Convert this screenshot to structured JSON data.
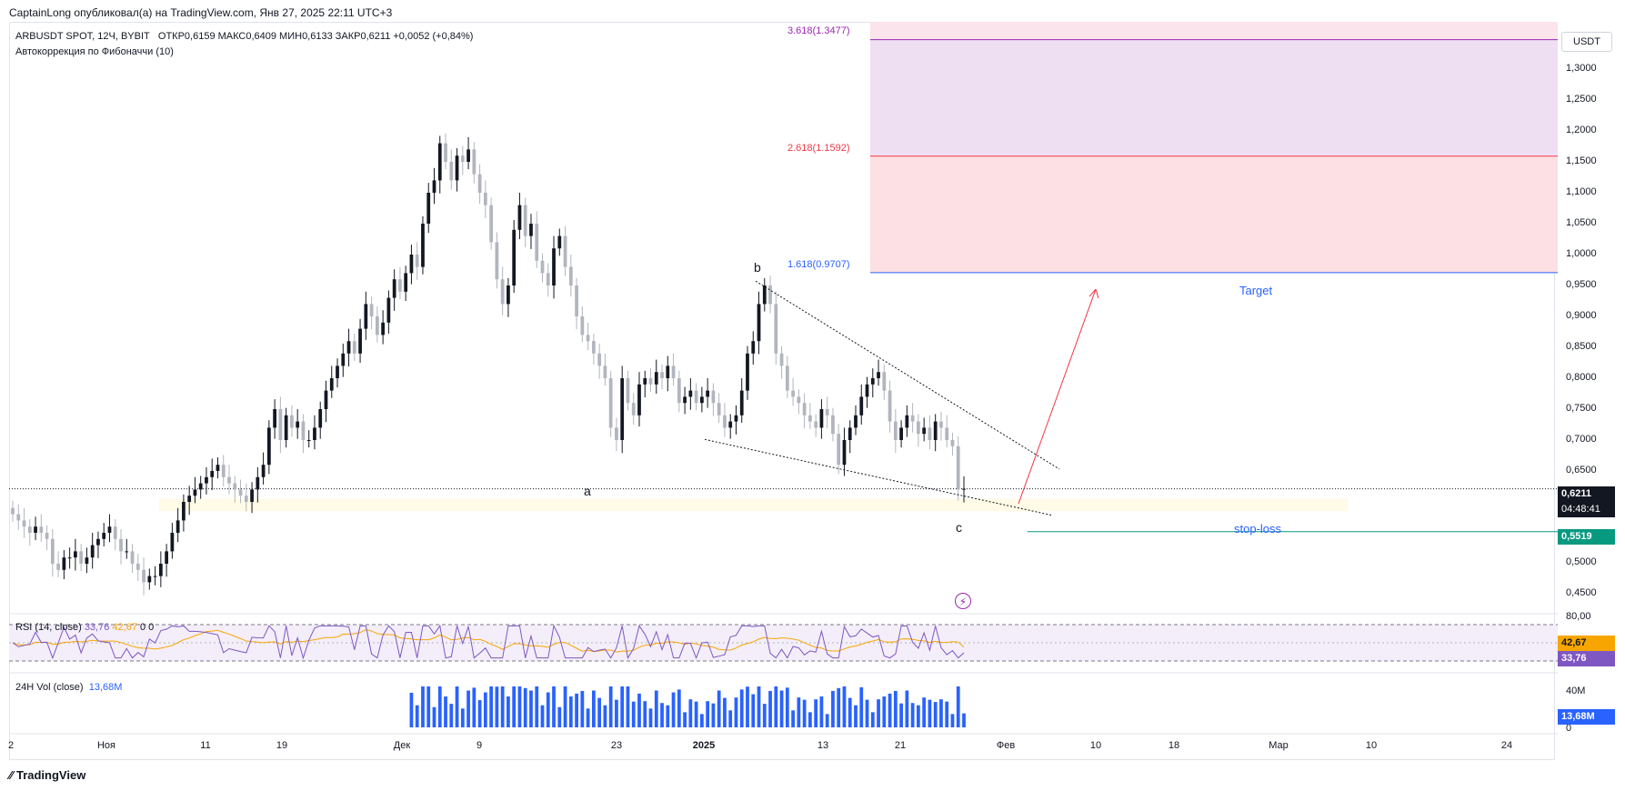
{
  "publisher_line": "CaptainLong опубликовал(а) на TradingView.com, Янв 27, 2025 22:11 UTC+3",
  "legend": {
    "symbol": "ARBUSDT SPOT, 12Ч, BYBIT",
    "ohlc": "ОТКР0,6159  МАКС0,6409  МИН0,6133  ЗАКР0,6211  +0,0052 (+0,84%)",
    "indicator": "Автокоррекция по Фибоначчи (10)"
  },
  "currency_button": "USDT",
  "price_axis": [
    "1,3000",
    "1,2500",
    "1,2000",
    "1,1500",
    "1,1000",
    "1,0500",
    "1,0000",
    "0,9500",
    "0,9000",
    "0,8500",
    "0,8000",
    "0,7500",
    "0,7000",
    "0,6500",
    "0,5000",
    "0,4500"
  ],
  "current_price": {
    "value": "0,6211",
    "countdown": "04:48:41"
  },
  "stop_loss_price": "0,5519",
  "fib_levels": [
    {
      "label": "3.618(1.3477)",
      "color": "#9c27b0"
    },
    {
      "label": "2.618(1.1592)",
      "color": "#f23645"
    },
    {
      "label": "1.618(0.9707)",
      "color": "#2962ff"
    }
  ],
  "annotations": {
    "target": "Target",
    "stop_loss": "stop-loss",
    "wave_a": "a",
    "wave_b": "b",
    "wave_c": "c"
  },
  "rsi": {
    "title": "RSI (14, close)",
    "value": "33,76",
    "ma_value": "42,67",
    "extra": "0  0",
    "axis_top": "80,00",
    "tag_ma": "42,67",
    "tag_rsi": "33,76",
    "rsi_color": "#7e57c2",
    "ma_color": "#f7a600"
  },
  "volume": {
    "title": "24H Vol (close)",
    "value": "13,68M",
    "axis_top": "40M",
    "axis_zero": "0",
    "tag": "13,68M",
    "bar_color": "#2962ff"
  },
  "time_axis": [
    "2",
    "Ноя",
    "11",
    "19",
    "Дек",
    "9",
    "23",
    "2025",
    "13",
    "21",
    "Фев",
    "10",
    "18",
    "Мар",
    "10",
    "24"
  ],
  "branding": "TradingView",
  "chart_data": {
    "type": "candlestick",
    "symbol": "ARBUSDT",
    "timeframe": "12h",
    "ylim": [
      0.43,
      1.39
    ],
    "y_ticks": [
      0.45,
      0.5,
      0.65,
      0.7,
      0.75,
      0.8,
      0.85,
      0.9,
      0.95,
      1.0,
      1.05,
      1.1,
      1.15,
      1.2,
      1.25,
      1.3
    ],
    "closes": [
      0.58,
      0.57,
      0.56,
      0.55,
      0.56,
      0.55,
      0.54,
      0.5,
      0.49,
      0.51,
      0.51,
      0.52,
      0.5,
      0.51,
      0.53,
      0.54,
      0.55,
      0.56,
      0.54,
      0.52,
      0.52,
      0.5,
      0.49,
      0.47,
      0.48,
      0.48,
      0.5,
      0.52,
      0.55,
      0.57,
      0.6,
      0.61,
      0.62,
      0.63,
      0.64,
      0.65,
      0.66,
      0.64,
      0.63,
      0.62,
      0.61,
      0.6,
      0.62,
      0.64,
      0.66,
      0.72,
      0.75,
      0.7,
      0.74,
      0.72,
      0.73,
      0.7,
      0.7,
      0.72,
      0.75,
      0.78,
      0.8,
      0.82,
      0.84,
      0.86,
      0.84,
      0.88,
      0.92,
      0.9,
      0.87,
      0.89,
      0.93,
      0.96,
      0.94,
      0.97,
      1.0,
      0.98,
      1.05,
      1.1,
      1.12,
      1.18,
      1.15,
      1.12,
      1.16,
      1.15,
      1.17,
      1.13,
      1.1,
      1.08,
      1.02,
      0.96,
      0.92,
      0.95,
      1.04,
      1.08,
      1.03,
      1.05,
      0.99,
      0.97,
      0.95,
      1.01,
      1.03,
      0.98,
      0.95,
      0.9,
      0.87,
      0.86,
      0.84,
      0.82,
      0.8,
      0.72,
      0.7,
      0.8,
      0.76,
      0.74,
      0.79,
      0.8,
      0.79,
      0.81,
      0.8,
      0.82,
      0.8,
      0.76,
      0.77,
      0.78,
      0.76,
      0.77,
      0.78,
      0.76,
      0.74,
      0.72,
      0.73,
      0.74,
      0.78,
      0.84,
      0.86,
      0.92,
      0.95,
      0.92,
      0.84,
      0.82,
      0.78,
      0.77,
      0.76,
      0.74,
      0.73,
      0.72,
      0.75,
      0.74,
      0.71,
      0.66,
      0.7,
      0.72,
      0.74,
      0.77,
      0.79,
      0.8,
      0.81,
      0.78,
      0.73,
      0.7,
      0.72,
      0.74,
      0.73,
      0.71,
      0.72,
      0.7,
      0.73,
      0.72,
      0.7,
      0.69,
      0.62,
      0.6211
    ],
    "annotations": {
      "fib_targets": [
        1.3477,
        1.1592,
        0.9707
      ],
      "stop_loss": 0.5519,
      "current": 0.6211,
      "wedge_upper": [
        [
          0.957,
          0.655
        ]
      ],
      "wedge_lower": [
        [
          0.7,
          0.578
        ]
      ]
    },
    "rsi": {
      "range": [
        0,
        100
      ],
      "last": 33.76,
      "ma_last": 42.67,
      "upper_band": 80,
      "lower_band": 20
    },
    "volume": {
      "unit": "M",
      "axis_max": 40,
      "last": 13.68
    }
  }
}
